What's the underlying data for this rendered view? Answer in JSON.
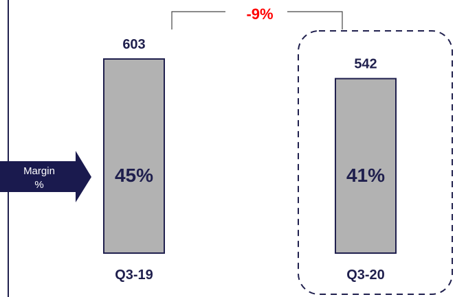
{
  "chart_data": {
    "type": "bar",
    "categories": [
      "Q3-19",
      "Q3-20"
    ],
    "values": [
      603,
      542
    ],
    "margins": [
      "45%",
      "41%"
    ],
    "value_labels": [
      "603",
      "542"
    ],
    "change_label": "-9%",
    "margin_label_line1": "Margin",
    "margin_label_line2": "%",
    "highlighted_category": "Q3-20",
    "ylim": [
      0,
      620
    ],
    "colors": {
      "bar_fill": "#b2b2b2",
      "bar_stroke": "#1f1f4d",
      "text": "#1f1f4d",
      "change": "#ff0000",
      "arrow": "#1a1a4e",
      "arrow_text": "#ffffff"
    }
  }
}
